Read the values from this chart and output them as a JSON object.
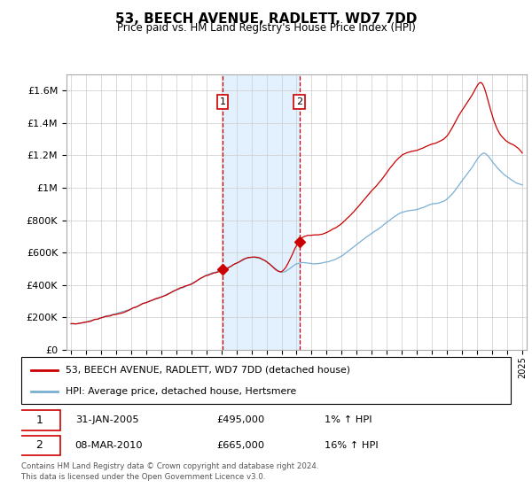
{
  "title": "53, BEECH AVENUE, RADLETT, WD7 7DD",
  "subtitle": "Price paid vs. HM Land Registry's House Price Index (HPI)",
  "legend_line1": "53, BEECH AVENUE, RADLETT, WD7 7DD (detached house)",
  "legend_line2": "HPI: Average price, detached house, Hertsmere",
  "transaction1_date": "31-JAN-2005",
  "transaction1_price": "£495,000",
  "transaction1_hpi": "1% ↑ HPI",
  "transaction1_year": 2005.08,
  "transaction1_value": 495000,
  "transaction2_date": "08-MAR-2010",
  "transaction2_price": "£665,000",
  "transaction2_hpi": "16% ↑ HPI",
  "transaction2_year": 2010.19,
  "transaction2_value": 665000,
  "red_line_color": "#cc0000",
  "blue_line_color": "#7aafd4",
  "marker_box_color": "#cc0000",
  "shaded_color": "#ddeeff",
  "footer": "Contains HM Land Registry data © Crown copyright and database right 2024.\nThis data is licensed under the Open Government Licence v3.0.",
  "ylim": [
    0,
    1700000
  ],
  "xlim_start": 1994.7,
  "xlim_end": 2025.3
}
